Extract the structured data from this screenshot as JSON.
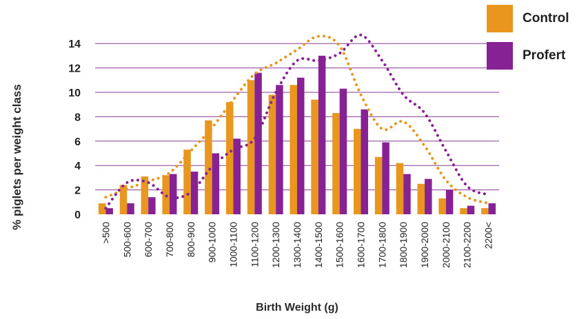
{
  "chart_data": {
    "type": "bar",
    "xlabel": "Birth Weight (g)",
    "ylabel": "% piglets per weight class",
    "ylim": [
      0,
      15
    ],
    "yticks": [
      0,
      2,
      4,
      6,
      8,
      10,
      12,
      14
    ],
    "grid": true,
    "legend_position": "top-right",
    "categories": [
      ">500",
      "500-600",
      "600-700",
      "700-800",
      "800-900",
      "900-1000",
      "1000-1100",
      "1100-1200",
      "1200-1300",
      "1300-1400",
      "1400-1500",
      "1500-1600",
      "1600-1700",
      "1700-1800",
      "1800-1900",
      "1900-2000",
      "2000-2100",
      "2100-2200",
      "2200<"
    ],
    "series": [
      {
        "name": "Control",
        "color": "#E8961E",
        "values": [
          0.9,
          2.4,
          3.1,
          3.2,
          5.3,
          7.7,
          9.2,
          11.0,
          9.8,
          10.6,
          9.4,
          8.3,
          7.0,
          4.7,
          4.2,
          2.5,
          1.3,
          0.5,
          0.5
        ],
        "trend": [
          1.4,
          2.1,
          2.7,
          3.4,
          5.2,
          7.1,
          9.4,
          11.5,
          12.4,
          13.5,
          14.6,
          13.8,
          9.8,
          7.0,
          7.6,
          5.6,
          2.8,
          1.4,
          0.9
        ]
      },
      {
        "name": "Profert",
        "color": "#872295",
        "values": [
          0.5,
          0.9,
          1.4,
          3.3,
          3.5,
          5.0,
          6.2,
          11.6,
          10.6,
          11.2,
          13.0,
          10.3,
          8.6,
          5.9,
          3.3,
          2.9,
          2.0,
          0.7,
          0.9
        ],
        "trend": [
          0.5,
          2.6,
          2.6,
          1.4,
          1.8,
          3.9,
          5.3,
          6.2,
          10.0,
          12.6,
          12.6,
          13.2,
          14.7,
          12.6,
          9.8,
          8.3,
          5.2,
          2.3,
          1.6
        ]
      }
    ]
  }
}
